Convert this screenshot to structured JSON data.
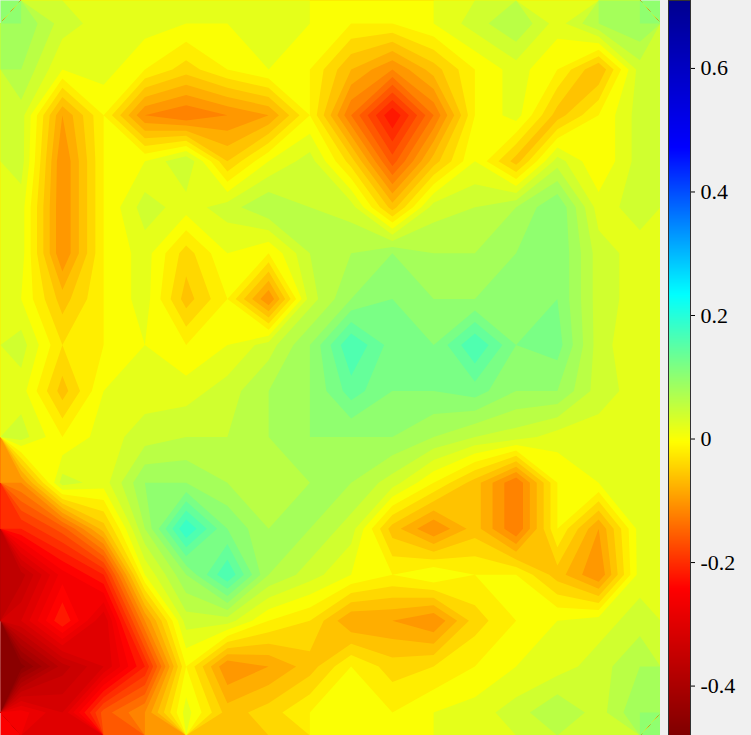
{
  "chart_data": {
    "type": "contour",
    "tick_labels": false,
    "cells": [
      [
        0.1,
        0.05,
        0.03,
        0.03,
        0.02,
        0.02,
        0.03,
        0.02,
        0.0,
        0.0,
        0.02,
        0.05,
        0.08,
        0.03,
        0.08,
        0.1
      ],
      [
        0.08,
        0.02,
        0.03,
        0.0,
        -0.03,
        0.0,
        0.02,
        0.0,
        -0.06,
        -0.1,
        -0.05,
        0.0,
        0.03,
        0.0,
        -0.06,
        0.05
      ],
      [
        0.05,
        -0.08,
        0.0,
        -0.1,
        -0.12,
        -0.1,
        -0.08,
        0.0,
        -0.12,
        -0.22,
        -0.12,
        0.0,
        0.03,
        -0.05,
        0.0,
        0.05
      ],
      [
        0.05,
        -0.1,
        0.0,
        0.02,
        0.06,
        -0.04,
        0.02,
        0.05,
        -0.03,
        -0.15,
        -0.05,
        0.02,
        -0.05,
        0.05,
        0.0,
        0.05
      ],
      [
        0.03,
        -0.1,
        0.0,
        0.05,
        0.03,
        0.05,
        0.08,
        0.06,
        0.05,
        -0.05,
        0.05,
        0.06,
        0.08,
        0.12,
        0.03,
        0.05
      ],
      [
        0.03,
        -0.1,
        0.0,
        0.03,
        -0.03,
        0.02,
        0.0,
        0.06,
        0.08,
        0.1,
        0.08,
        0.08,
        0.1,
        0.12,
        0.05,
        0.03
      ],
      [
        0.02,
        -0.05,
        0.0,
        0.03,
        -0.05,
        0.0,
        -0.1,
        0.05,
        0.1,
        0.12,
        0.1,
        0.1,
        0.1,
        0.12,
        0.05,
        0.03
      ],
      [
        0.05,
        -0.02,
        0.0,
        0.02,
        0.0,
        0.02,
        0.05,
        0.1,
        0.18,
        0.13,
        0.12,
        0.18,
        0.12,
        0.13,
        0.05,
        0.02
      ],
      [
        0.03,
        -0.05,
        0.02,
        0.03,
        0.03,
        0.05,
        0.08,
        0.1,
        0.15,
        0.12,
        0.12,
        0.13,
        0.1,
        0.1,
        0.05,
        0.03
      ],
      [
        0.05,
        0.0,
        0.03,
        0.05,
        0.06,
        0.06,
        0.08,
        0.1,
        0.1,
        0.1,
        0.08,
        0.06,
        0.05,
        0.03,
        0.03,
        0.03
      ],
      [
        -0.1,
        0.05,
        0.03,
        0.1,
        0.1,
        0.08,
        0.06,
        0.08,
        0.08,
        0.05,
        0.0,
        -0.05,
        -0.12,
        0.0,
        0.02,
        0.03
      ],
      [
        -0.2,
        -0.15,
        -0.05,
        0.08,
        0.2,
        0.12,
        0.08,
        0.08,
        0.05,
        -0.05,
        -0.1,
        -0.05,
        -0.12,
        0.0,
        -0.08,
        0.03
      ],
      [
        -0.35,
        -0.25,
        -0.2,
        0.02,
        0.1,
        0.18,
        0.08,
        0.05,
        0.02,
        0.0,
        0.02,
        0.0,
        0.0,
        -0.05,
        -0.1,
        0.03
      ],
      [
        -0.3,
        -0.2,
        -0.3,
        -0.1,
        0.05,
        0.05,
        0.0,
        -0.02,
        -0.08,
        -0.08,
        -0.1,
        -0.03,
        0.0,
        0.02,
        0.03,
        0.05
      ],
      [
        -0.45,
        -0.35,
        -0.3,
        -0.2,
        0.0,
        -0.1,
        -0.08,
        -0.05,
        0.0,
        -0.03,
        -0.02,
        0.0,
        0.02,
        0.03,
        0.05,
        0.08
      ],
      [
        -0.25,
        -0.3,
        -0.15,
        -0.1,
        0.03,
        -0.05,
        -0.03,
        0.0,
        0.02,
        0.0,
        0.02,
        0.03,
        0.05,
        0.08,
        0.05,
        0.1
      ]
    ],
    "colorbar": {
      "range": [
        -0.48,
        0.71
      ],
      "ticks": [
        -0.4,
        -0.2,
        0,
        0.2,
        0.4,
        0.6
      ]
    }
  }
}
